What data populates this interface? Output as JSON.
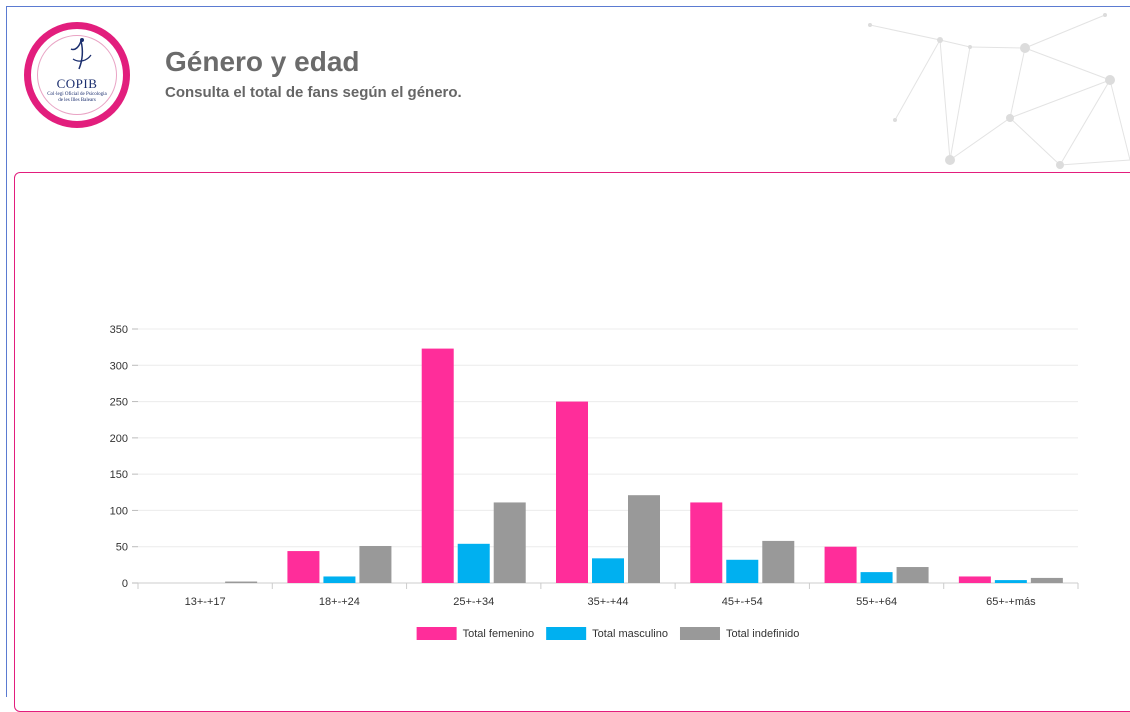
{
  "header": {
    "title": "Género y edad",
    "subtitle": "Consulta el total de fans según el género."
  },
  "logo": {
    "name": "COPIB",
    "sub": "Col·legi Oficial de Psicologia de les Illes Balears"
  },
  "colors": {
    "accent": "#e21e7d",
    "frame": "#5b7bd1",
    "femenino": "#ff2d9a",
    "masculino": "#00b0f0",
    "indefinido": "#999999"
  },
  "chart_data": {
    "type": "bar",
    "categories": [
      "13+-+17",
      "18+-+24",
      "25+-+34",
      "35+-+44",
      "45+-+54",
      "55+-+64",
      "65+-+más"
    ],
    "series": [
      {
        "name": "Total femenino",
        "color": "#ff2d9a",
        "values": [
          0,
          44,
          323,
          250,
          111,
          50,
          9
        ]
      },
      {
        "name": "Total masculino",
        "color": "#00b0f0",
        "values": [
          0,
          9,
          54,
          34,
          32,
          15,
          4
        ]
      },
      {
        "name": "Total indefinido",
        "color": "#999999",
        "values": [
          2,
          51,
          111,
          121,
          58,
          22,
          7
        ]
      }
    ],
    "yticks": [
      "0",
      "50",
      "100",
      "150",
      "200",
      "250",
      "300",
      "350"
    ],
    "ylim": [
      0,
      350
    ],
    "grid": true,
    "legend_position": "bottom"
  }
}
